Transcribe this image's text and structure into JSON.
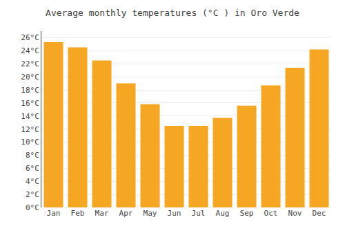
{
  "chart_data": {
    "type": "bar",
    "title": "Average monthly temperatures (°C ) in Oro Verde",
    "categories": [
      "Jan",
      "Feb",
      "Mar",
      "Apr",
      "May",
      "Jun",
      "Jul",
      "Aug",
      "Sep",
      "Oct",
      "Nov",
      "Dec"
    ],
    "values": [
      25.3,
      24.5,
      22.5,
      19.0,
      15.8,
      12.5,
      12.5,
      13.7,
      15.6,
      18.7,
      21.4,
      24.2
    ],
    "color": "#F5A623",
    "ylim": [
      0,
      27
    ],
    "yticks": [
      {
        "value": 0,
        "label": "0°C"
      },
      {
        "value": 2,
        "label": "2°C"
      },
      {
        "value": 4,
        "label": "4°C"
      },
      {
        "value": 6,
        "label": "6°C"
      },
      {
        "value": 8,
        "label": "8°C"
      },
      {
        "value": 10,
        "label": "10°C"
      },
      {
        "value": 12,
        "label": "12°C"
      },
      {
        "value": 14,
        "label": "14°C"
      },
      {
        "value": 16,
        "label": "16°C"
      },
      {
        "value": 18,
        "label": "18°C"
      },
      {
        "value": 20,
        "label": "20°C"
      },
      {
        "value": 22,
        "label": "22°C"
      },
      {
        "value": 24,
        "label": "24°C"
      },
      {
        "value": 26,
        "label": "26°C"
      }
    ],
    "grid": true
  }
}
